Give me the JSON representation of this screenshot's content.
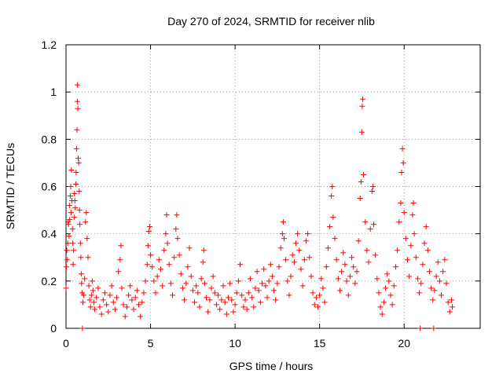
{
  "chart_data": {
    "type": "scatter",
    "title": "Day 270 of 2024, SRMTID for receiver nlib",
    "xlabel": "GPS time / hours",
    "ylabel": "SRMTID / TECUs",
    "xlim": [
      0,
      24.5
    ],
    "ylim": [
      0,
      1.2
    ],
    "xticks": [
      0,
      5,
      10,
      15,
      20
    ],
    "xtick_labels": [
      "0",
      "5",
      "10",
      "15",
      "20"
    ],
    "yticks": [
      0,
      0.2,
      0.4,
      0.6,
      0.8,
      1.0,
      1.2
    ],
    "ytick_labels": [
      "0",
      "0.2",
      "0.4",
      "0.6",
      "0.8",
      "1",
      "1.2"
    ],
    "grid": true,
    "marker": "plus",
    "color": "#ff0000",
    "series": [
      {
        "name": "SRMTID",
        "points": [
          [
            0.0,
            0.17
          ],
          [
            0.02,
            0.26
          ],
          [
            0.05,
            0.33
          ],
          [
            0.08,
            0.29
          ],
          [
            0.1,
            0.36
          ],
          [
            0.12,
            0.45
          ],
          [
            0.15,
            0.44
          ],
          [
            0.18,
            0.39
          ],
          [
            0.2,
            0.52
          ],
          [
            0.22,
            0.46
          ],
          [
            0.25,
            0.56
          ],
          [
            0.28,
            0.6
          ],
          [
            0.3,
            0.49
          ],
          [
            0.32,
            0.67
          ],
          [
            0.35,
            0.54
          ],
          [
            0.38,
            0.42
          ],
          [
            0.4,
            0.36
          ],
          [
            0.42,
            0.27
          ],
          [
            0.45,
            0.33
          ],
          [
            0.48,
            0.47
          ],
          [
            0.5,
            0.57
          ],
          [
            0.52,
            0.54
          ],
          [
            0.55,
            0.51
          ],
          [
            0.58,
            0.61
          ],
          [
            0.6,
            0.66
          ],
          [
            0.62,
            0.76
          ],
          [
            0.65,
            0.84
          ],
          [
            0.67,
            0.96
          ],
          [
            0.68,
            1.03
          ],
          [
            0.7,
            0.93
          ],
          [
            0.72,
            0.72
          ],
          [
            0.75,
            0.7
          ],
          [
            0.78,
            0.58
          ],
          [
            0.8,
            0.5
          ],
          [
            0.82,
            0.44
          ],
          [
            0.85,
            0.36
          ],
          [
            0.88,
            0.3
          ],
          [
            0.9,
            0.23
          ],
          [
            0.92,
            0.19
          ],
          [
            0.95,
            0.15
          ],
          [
            0.97,
            0.0
          ],
          [
            1.0,
            0.11
          ],
          [
            1.05,
            0.14
          ],
          [
            1.1,
            0.21
          ],
          [
            1.15,
            0.45
          ],
          [
            1.2,
            0.49
          ],
          [
            1.25,
            0.38
          ],
          [
            1.3,
            0.3
          ],
          [
            1.35,
            0.18
          ],
          [
            1.4,
            0.12
          ],
          [
            1.45,
            0.09
          ],
          [
            1.5,
            0.14
          ],
          [
            1.55,
            0.2
          ],
          [
            1.6,
            0.16
          ],
          [
            1.65,
            0.11
          ],
          [
            1.7,
            0.08
          ],
          [
            1.8,
            0.13
          ],
          [
            1.9,
            0.17
          ],
          [
            2.0,
            0.09
          ],
          [
            2.1,
            0.06
          ],
          [
            2.2,
            0.12
          ],
          [
            2.3,
            0.15
          ],
          [
            2.4,
            0.1
          ],
          [
            2.5,
            0.07
          ],
          [
            2.6,
            0.14
          ],
          [
            2.7,
            0.18
          ],
          [
            2.8,
            0.11
          ],
          [
            2.9,
            0.08
          ],
          [
            3.0,
            0.13
          ],
          [
            3.1,
            0.24
          ],
          [
            3.2,
            0.29
          ],
          [
            3.25,
            0.35
          ],
          [
            3.3,
            0.17
          ],
          [
            3.4,
            0.1
          ],
          [
            3.5,
            0.05
          ],
          [
            3.6,
            0.09
          ],
          [
            3.7,
            0.14
          ],
          [
            3.8,
            0.18
          ],
          [
            3.9,
            0.12
          ],
          [
            4.0,
            0.08
          ],
          [
            4.1,
            0.13
          ],
          [
            4.2,
            0.16
          ],
          [
            4.3,
            0.1
          ],
          [
            4.4,
            0.05
          ],
          [
            4.5,
            0.11
          ],
          [
            4.6,
            0.15
          ],
          [
            4.7,
            0.2
          ],
          [
            4.8,
            0.27
          ],
          [
            4.85,
            0.35
          ],
          [
            4.9,
            0.41
          ],
          [
            4.95,
            0.43
          ],
          [
            5.0,
            0.31
          ],
          [
            5.1,
            0.26
          ],
          [
            5.2,
            0.2
          ],
          [
            5.3,
            0.15
          ],
          [
            5.4,
            0.22
          ],
          [
            5.5,
            0.29
          ],
          [
            5.6,
            0.25
          ],
          [
            5.7,
            0.18
          ],
          [
            5.8,
            0.33
          ],
          [
            5.9,
            0.4
          ],
          [
            5.95,
            0.48
          ],
          [
            6.0,
            0.36
          ],
          [
            6.1,
            0.27
          ],
          [
            6.2,
            0.19
          ],
          [
            6.3,
            0.14
          ],
          [
            6.4,
            0.3
          ],
          [
            6.5,
            0.42
          ],
          [
            6.55,
            0.48
          ],
          [
            6.6,
            0.38
          ],
          [
            6.7,
            0.31
          ],
          [
            6.8,
            0.23
          ],
          [
            6.9,
            0.17
          ],
          [
            7.0,
            0.12
          ],
          [
            7.1,
            0.19
          ],
          [
            7.2,
            0.26
          ],
          [
            7.3,
            0.34
          ],
          [
            7.4,
            0.22
          ],
          [
            7.5,
            0.16
          ],
          [
            7.6,
            0.11
          ],
          [
            7.7,
            0.18
          ],
          [
            7.8,
            0.15
          ],
          [
            7.9,
            0.09
          ],
          [
            8.0,
            0.21
          ],
          [
            8.1,
            0.28
          ],
          [
            8.15,
            0.33
          ],
          [
            8.2,
            0.19
          ],
          [
            8.3,
            0.13
          ],
          [
            8.4,
            0.07
          ],
          [
            8.5,
            0.12
          ],
          [
            8.6,
            0.17
          ],
          [
            8.7,
            0.22
          ],
          [
            8.8,
            0.15
          ],
          [
            8.9,
            0.1
          ],
          [
            9.0,
            0.14
          ],
          [
            9.1,
            0.08
          ],
          [
            9.2,
            0.12
          ],
          [
            9.3,
            0.18
          ],
          [
            9.4,
            0.11
          ],
          [
            9.5,
            0.06
          ],
          [
            9.6,
            0.13
          ],
          [
            9.7,
            0.19
          ],
          [
            9.8,
            0.12
          ],
          [
            9.9,
            0.07
          ],
          [
            10.0,
            0.1
          ],
          [
            10.1,
            0.15
          ],
          [
            10.2,
            0.2
          ],
          [
            10.3,
            0.27
          ],
          [
            10.4,
            0.14
          ],
          [
            10.5,
            0.09
          ],
          [
            10.6,
            0.12
          ],
          [
            10.7,
            0.08
          ],
          [
            10.8,
            0.15
          ],
          [
            10.9,
            0.21
          ],
          [
            11.0,
            0.13
          ],
          [
            11.1,
            0.09
          ],
          [
            11.2,
            0.17
          ],
          [
            11.3,
            0.24
          ],
          [
            11.4,
            0.16
          ],
          [
            11.5,
            0.11
          ],
          [
            11.6,
            0.19
          ],
          [
            11.7,
            0.25
          ],
          [
            11.8,
            0.18
          ],
          [
            11.9,
            0.13
          ],
          [
            12.0,
            0.2
          ],
          [
            12.1,
            0.27
          ],
          [
            12.2,
            0.22
          ],
          [
            12.3,
            0.16
          ],
          [
            12.4,
            0.12
          ],
          [
            12.5,
            0.19
          ],
          [
            12.6,
            0.26
          ],
          [
            12.7,
            0.34
          ],
          [
            12.8,
            0.4
          ],
          [
            12.85,
            0.45
          ],
          [
            12.9,
            0.38
          ],
          [
            13.0,
            0.29
          ],
          [
            13.1,
            0.2
          ],
          [
            13.2,
            0.14
          ],
          [
            13.3,
            0.22
          ],
          [
            13.4,
            0.31
          ],
          [
            13.5,
            0.28
          ],
          [
            13.6,
            0.36
          ],
          [
            13.7,
            0.4
          ],
          [
            13.8,
            0.33
          ],
          [
            13.9,
            0.25
          ],
          [
            14.0,
            0.18
          ],
          [
            14.1,
            0.29
          ],
          [
            14.2,
            0.37
          ],
          [
            14.3,
            0.4
          ],
          [
            14.4,
            0.3
          ],
          [
            14.5,
            0.22
          ],
          [
            14.6,
            0.15
          ],
          [
            14.7,
            0.1
          ],
          [
            14.8,
            0.13
          ],
          [
            14.9,
            0.09
          ],
          [
            15.0,
            0.14
          ],
          [
            15.1,
            0.21
          ],
          [
            15.2,
            0.17
          ],
          [
            15.3,
            0.11
          ],
          [
            15.4,
            0.26
          ],
          [
            15.5,
            0.34
          ],
          [
            15.6,
            0.43
          ],
          [
            15.7,
            0.56
          ],
          [
            15.75,
            0.6
          ],
          [
            15.8,
            0.47
          ],
          [
            15.9,
            0.38
          ],
          [
            16.0,
            0.29
          ],
          [
            16.1,
            0.21
          ],
          [
            16.2,
            0.16
          ],
          [
            16.3,
            0.24
          ],
          [
            16.4,
            0.32
          ],
          [
            16.5,
            0.27
          ],
          [
            16.6,
            0.2
          ],
          [
            16.7,
            0.14
          ],
          [
            16.8,
            0.22
          ],
          [
            16.9,
            0.3
          ],
          [
            17.0,
            0.26
          ],
          [
            17.1,
            0.19
          ],
          [
            17.2,
            0.24
          ],
          [
            17.3,
            0.37
          ],
          [
            17.4,
            0.55
          ],
          [
            17.45,
            0.62
          ],
          [
            17.5,
            0.83
          ],
          [
            17.52,
            0.94
          ],
          [
            17.55,
            0.97
          ],
          [
            17.6,
            0.65
          ],
          [
            17.7,
            0.45
          ],
          [
            17.8,
            0.33
          ],
          [
            17.9,
            0.28
          ],
          [
            18.0,
            0.42
          ],
          [
            18.1,
            0.58
          ],
          [
            18.15,
            0.6
          ],
          [
            18.2,
            0.44
          ],
          [
            18.3,
            0.31
          ],
          [
            18.4,
            0.21
          ],
          [
            18.5,
            0.15
          ],
          [
            18.6,
            0.09
          ],
          [
            18.7,
            0.06
          ],
          [
            18.8,
            0.11
          ],
          [
            18.9,
            0.17
          ],
          [
            19.0,
            0.23
          ],
          [
            19.1,
            0.2
          ],
          [
            19.2,
            0.14
          ],
          [
            19.3,
            0.1
          ],
          [
            19.4,
            0.18
          ],
          [
            19.5,
            0.26
          ],
          [
            19.6,
            0.33
          ],
          [
            19.7,
            0.45
          ],
          [
            19.8,
            0.53
          ],
          [
            19.85,
            0.66
          ],
          [
            19.9,
            0.76
          ],
          [
            19.95,
            0.7
          ],
          [
            20.0,
            0.49
          ],
          [
            20.1,
            0.38
          ],
          [
            20.2,
            0.29
          ],
          [
            20.3,
            0.22
          ],
          [
            20.4,
            0.35
          ],
          [
            20.5,
            0.48
          ],
          [
            20.55,
            0.53
          ],
          [
            20.6,
            0.4
          ],
          [
            20.7,
            0.3
          ],
          [
            20.8,
            0.21
          ],
          [
            20.9,
            0.15
          ],
          [
            20.95,
            0.0
          ],
          [
            21.0,
            0.19
          ],
          [
            21.1,
            0.27
          ],
          [
            21.2,
            0.36
          ],
          [
            21.3,
            0.43
          ],
          [
            21.4,
            0.33
          ],
          [
            21.5,
            0.24
          ],
          [
            21.6,
            0.17
          ],
          [
            21.7,
            0.12
          ],
          [
            21.75,
            0.0
          ],
          [
            21.8,
            0.16
          ],
          [
            21.9,
            0.22
          ],
          [
            22.0,
            0.28
          ],
          [
            22.1,
            0.2
          ],
          [
            22.2,
            0.14
          ],
          [
            22.3,
            0.24
          ],
          [
            22.4,
            0.29
          ],
          [
            22.5,
            0.19
          ],
          [
            22.6,
            0.11
          ],
          [
            22.7,
            0.07
          ],
          [
            22.8,
            0.12
          ],
          [
            22.85,
            0.09
          ]
        ]
      }
    ]
  }
}
